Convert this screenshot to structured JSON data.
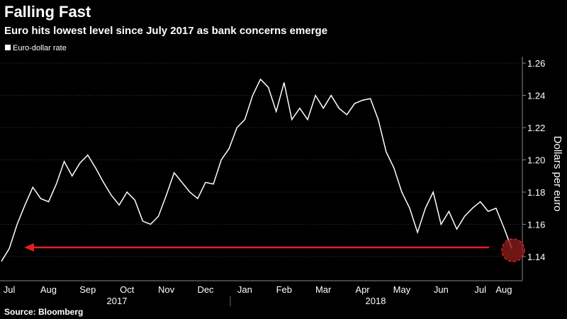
{
  "chart_data": {
    "type": "line",
    "title": "Falling Fast",
    "subtitle": "Euro hits lowest level since July 2017 as bank concerns emerge",
    "source": "Source: Bloomberg",
    "y_label": "Dollars per euro",
    "years": [
      "2017",
      "2018"
    ],
    "categories": [
      null,
      "Jul",
      null,
      null,
      null,
      null,
      "Aug",
      null,
      null,
      null,
      null,
      "Sep",
      null,
      null,
      null,
      null,
      "Oct",
      null,
      null,
      null,
      null,
      "Nov",
      null,
      null,
      null,
      null,
      "Dec",
      null,
      null,
      null,
      null,
      "Jan",
      null,
      null,
      null,
      null,
      "Feb",
      null,
      null,
      null,
      null,
      "Mar",
      null,
      null,
      null,
      null,
      "Apr",
      null,
      null,
      null,
      null,
      "May",
      null,
      null,
      null,
      null,
      "Jun",
      null,
      null,
      null,
      null,
      "Jul",
      null,
      null,
      "Aug",
      null
    ],
    "series": [
      {
        "name": "Euro-dollar rate",
        "color": "#ffffff",
        "values": [
          1.137,
          1.145,
          1.16,
          1.172,
          1.183,
          1.176,
          1.174,
          1.185,
          1.199,
          1.19,
          1.198,
          1.203,
          1.195,
          1.186,
          1.178,
          1.172,
          1.18,
          1.175,
          1.162,
          1.16,
          1.165,
          1.178,
          1.192,
          1.186,
          1.18,
          1.176,
          1.186,
          1.185,
          1.2,
          1.207,
          1.22,
          1.225,
          1.24,
          1.25,
          1.245,
          1.23,
          1.248,
          1.225,
          1.232,
          1.225,
          1.24,
          1.232,
          1.24,
          1.232,
          1.228,
          1.235,
          1.237,
          1.238,
          1.225,
          1.205,
          1.195,
          1.18,
          1.17,
          1.155,
          1.17,
          1.18,
          1.16,
          1.168,
          1.157,
          1.165,
          1.17,
          1.174,
          1.168,
          1.17,
          1.158,
          1.145
        ]
      }
    ],
    "ylim": [
      1.125,
      1.264
    ],
    "yticks": [
      1.14,
      1.16,
      1.18,
      {
        "value": 1.2,
        "label": "1.20"
      },
      1.22,
      1.24,
      1.26
    ],
    "grid": true
  }
}
